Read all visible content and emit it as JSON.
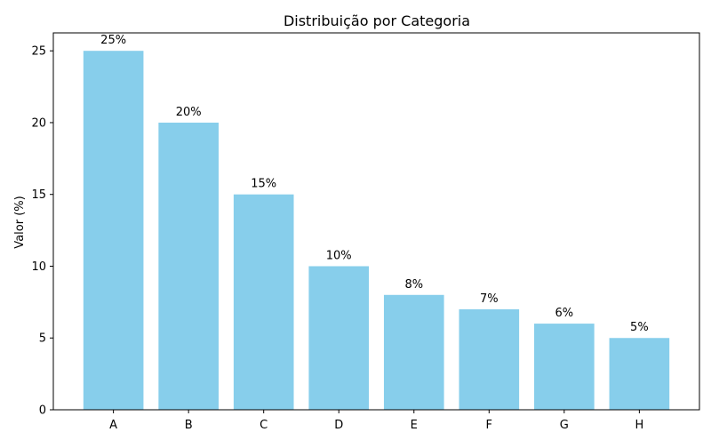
{
  "chart_data": {
    "type": "bar",
    "title": "Distribuição por Categoria",
    "xlabel": "",
    "ylabel": "Valor (%)",
    "categories": [
      "A",
      "B",
      "C",
      "D",
      "E",
      "F",
      "G",
      "H"
    ],
    "values": [
      25,
      20,
      15,
      10,
      8,
      7,
      6,
      5
    ],
    "data_labels": [
      "25%",
      "20%",
      "15%",
      "10%",
      "8%",
      "7%",
      "6%",
      "5%"
    ],
    "ylim": [
      0,
      26.25
    ],
    "yticks": [
      0,
      5,
      10,
      15,
      20,
      25
    ],
    "grid": false,
    "bar_color": "#87ceeb"
  }
}
